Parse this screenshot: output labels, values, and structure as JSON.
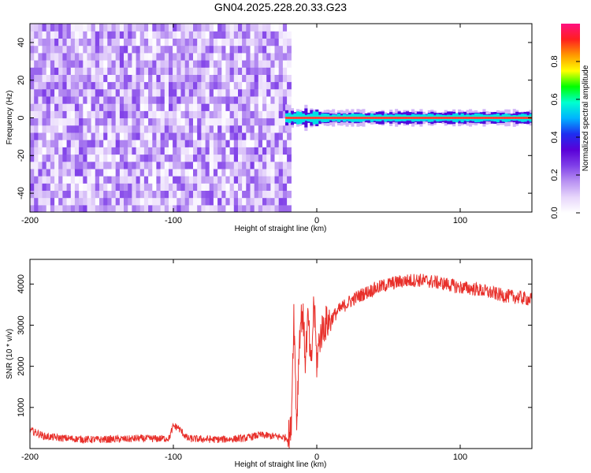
{
  "chart_data": [
    {
      "type": "heatmap",
      "title": "GN04.2025.228.20.33.G23",
      "xlabel": "Height of straight line (km)",
      "ylabel": "Frequency (Hz)",
      "xlim": [
        -200,
        150
      ],
      "ylim": [
        -50,
        50
      ],
      "x_ticks": [
        -200,
        -100,
        0,
        100
      ],
      "y_ticks": [
        -40,
        -20,
        0,
        20,
        40
      ],
      "colorbar": {
        "label": "Normalized spectral amplitude",
        "range": [
          0,
          1
        ],
        "ticks": [
          0.0,
          0.2,
          0.4,
          0.6,
          0.8
        ],
        "colors": [
          "#ffffff",
          "#e7d6fb",
          "#b891f2",
          "#7f3fe8",
          "#5a00d8",
          "#1d2ef0",
          "#00b3ff",
          "#00ffd0",
          "#00ff00",
          "#ffff00",
          "#ff9900",
          "#ff1f1f",
          "#ff1080"
        ]
      },
      "noise_region": {
        "x_range": [
          -200,
          -18
        ],
        "freq_range": [
          -50,
          50
        ],
        "amplitude": [
          0.0,
          0.25
        ]
      },
      "signal_band": {
        "x_range": [
          -22,
          150
        ],
        "freq_center": 0,
        "freq_halfwidth": [
          2,
          6
        ],
        "peak_amplitude": 0.95
      }
    },
    {
      "type": "line",
      "xlabel": "Height of straight line (km)",
      "ylabel": "SNR (10 * v/v)",
      "xlim": [
        -200,
        150
      ],
      "ylim": [
        0,
        4600
      ],
      "x_ticks": [
        -200,
        -100,
        0,
        100
      ],
      "y_ticks": [
        1000,
        2000,
        3000,
        4000
      ],
      "color": "#e8302b",
      "series": [
        {
          "x": [
            -200,
            -190,
            -180,
            -170,
            -160,
            -150,
            -140,
            -130,
            -125,
            -120,
            -110,
            -103,
            -100,
            -97,
            -90,
            -80,
            -70,
            -60,
            -50,
            -40,
            -30,
            -24,
            -20,
            -18,
            -16,
            -14,
            -12,
            -10,
            -8,
            -6,
            -4,
            -2,
            0,
            2,
            5,
            10,
            15,
            20,
            25,
            30,
            40,
            50,
            60,
            70,
            80,
            90,
            100,
            110,
            120,
            130,
            140,
            150
          ],
          "y": [
            450,
            300,
            260,
            240,
            220,
            220,
            230,
            230,
            250,
            240,
            240,
            250,
            550,
            520,
            240,
            230,
            220,
            230,
            250,
            330,
            300,
            280,
            250,
            400,
            3300,
            600,
            2800,
            3400,
            2200,
            3200,
            1800,
            3600,
            2100,
            2700,
            3000,
            3150,
            3350,
            3500,
            3620,
            3720,
            3880,
            4000,
            4070,
            4100,
            4060,
            4000,
            3920,
            3880,
            3800,
            3720,
            3680,
            3620
          ]
        }
      ]
    }
  ]
}
